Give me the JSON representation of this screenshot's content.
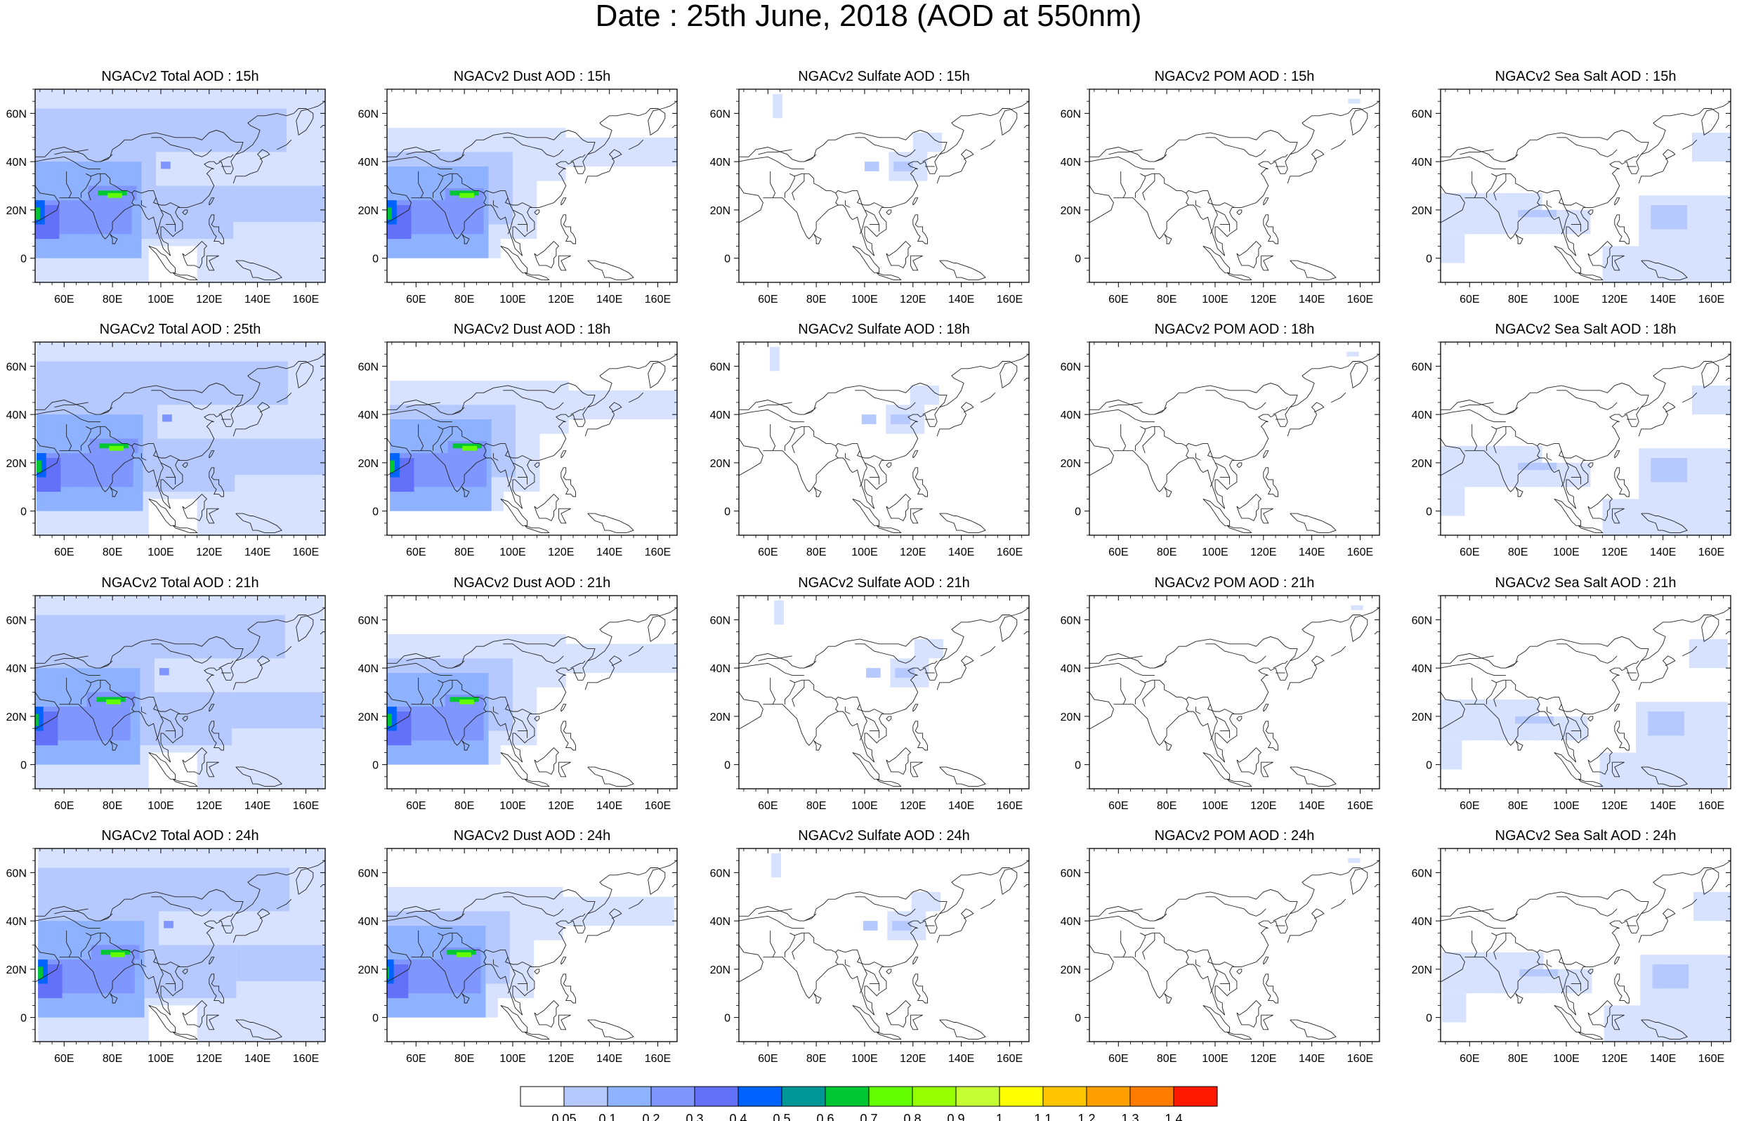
{
  "title": "Date : 25th June, 2018 (AOD at 550nm)",
  "x_ticks": [
    "60E",
    "80E",
    "100E",
    "120E",
    "140E",
    "160E"
  ],
  "y_ticks": [
    "60N",
    "40N",
    "20N",
    "0"
  ],
  "panels": [
    {
      "title": "NGACv2 Total AOD : 15h",
      "species": "total"
    },
    {
      "title": "NGACv2 Dust AOD : 15h",
      "species": "dust"
    },
    {
      "title": "NGACv2 Sulfate AOD : 15h",
      "species": "sulfate"
    },
    {
      "title": "NGACv2 POM AOD : 15h",
      "species": "pom"
    },
    {
      "title": "NGACv2 Sea Salt AOD : 15h",
      "species": "seasalt"
    },
    {
      "title": "NGACv2 Total AOD : 25th",
      "species": "total"
    },
    {
      "title": "NGACv2 Dust AOD : 18h",
      "species": "dust"
    },
    {
      "title": "NGACv2 Sulfate AOD : 18h",
      "species": "sulfate"
    },
    {
      "title": "NGACv2 POM AOD : 18h",
      "species": "pom"
    },
    {
      "title": "NGACv2 Sea Salt AOD : 18h",
      "species": "seasalt"
    },
    {
      "title": "NGACv2 Total AOD : 21h",
      "species": "total"
    },
    {
      "title": "NGACv2 Dust AOD : 21h",
      "species": "dust"
    },
    {
      "title": "NGACv2 Sulfate AOD : 21h",
      "species": "sulfate"
    },
    {
      "title": "NGACv2 POM AOD : 21h",
      "species": "pom"
    },
    {
      "title": "NGACv2 Sea Salt AOD : 21h",
      "species": "seasalt"
    },
    {
      "title": "NGACv2 Total AOD : 24h",
      "species": "total"
    },
    {
      "title": "NGACv2 Dust AOD : 24h",
      "species": "dust"
    },
    {
      "title": "NGACv2 Sulfate AOD : 24h",
      "species": "sulfate"
    },
    {
      "title": "NGACv2 POM AOD : 24h",
      "species": "pom"
    },
    {
      "title": "NGACv2 Sea Salt  AOD : 24h",
      "species": "seasalt"
    }
  ],
  "colorbar": {
    "labels": [
      "0.05",
      "0.1",
      "0.2",
      "0.3",
      "0.4",
      "0.5",
      "0.6",
      "0.7",
      "0.8",
      "0.9",
      "1",
      "1.1",
      "1.2",
      "1.3",
      "1.4"
    ],
    "colors": [
      "#ffffff",
      "#d6e2ff",
      "#b5c9ff",
      "#8eb2ff",
      "#7f96ff",
      "#6370f8",
      "#0063ff",
      "#009696",
      "#00c633",
      "#63ff00",
      "#96ff00",
      "#c6ff33",
      "#ffff00",
      "#ffc600",
      "#ffa000",
      "#ff7c00",
      "#ff1900"
    ]
  }
}
